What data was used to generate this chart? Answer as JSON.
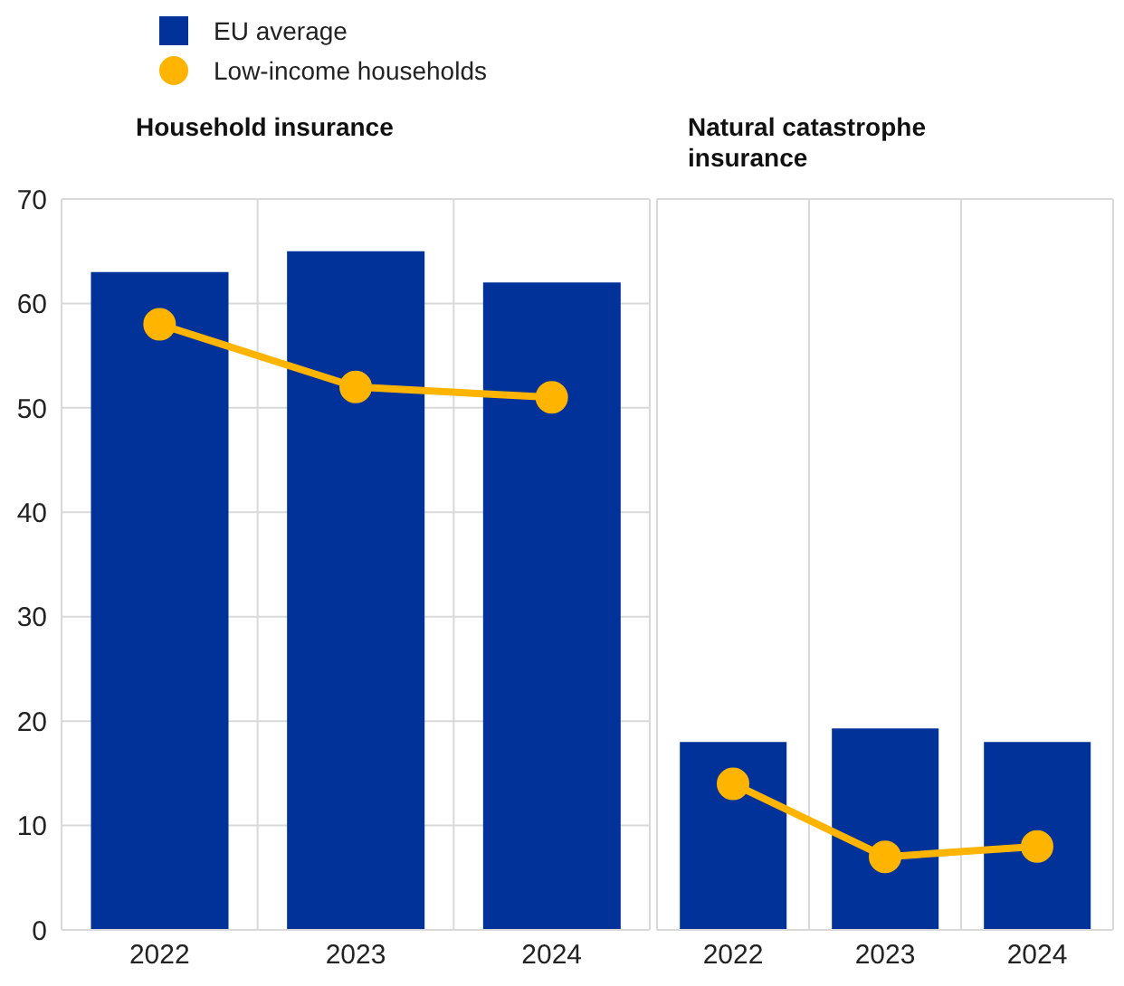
{
  "chart_data": [
    {
      "type": "bar",
      "title": "Household insurance",
      "categories": [
        "2022",
        "2023",
        "2024"
      ],
      "series": [
        {
          "name": "EU average",
          "color": "#003299",
          "values": [
            63,
            65,
            62
          ]
        },
        {
          "name": "Low-income households",
          "type": "line",
          "color": "#ffb400",
          "values": [
            58,
            52,
            51
          ]
        }
      ],
      "ylim": [
        0,
        70
      ],
      "yticks": [
        0,
        10,
        20,
        30,
        40,
        50,
        60,
        70
      ],
      "grid": true,
      "legend": "top",
      "marker": "circle"
    },
    {
      "type": "bar",
      "title": "Natural catastrophe insurance",
      "categories": [
        "2022",
        "2023",
        "2024"
      ],
      "series": [
        {
          "color": "#003299",
          "values": [
            18,
            19.3,
            18
          ]
        },
        {
          "type": "line",
          "color": "#ffb400",
          "values": [
            14,
            7,
            8
          ]
        }
      ],
      "ylim": [
        0,
        70
      ],
      "yticks": [
        0,
        10,
        20,
        30,
        40,
        50,
        60,
        70
      ],
      "grid": true,
      "tick_labels": "x",
      "marker": "circle"
    }
  ]
}
